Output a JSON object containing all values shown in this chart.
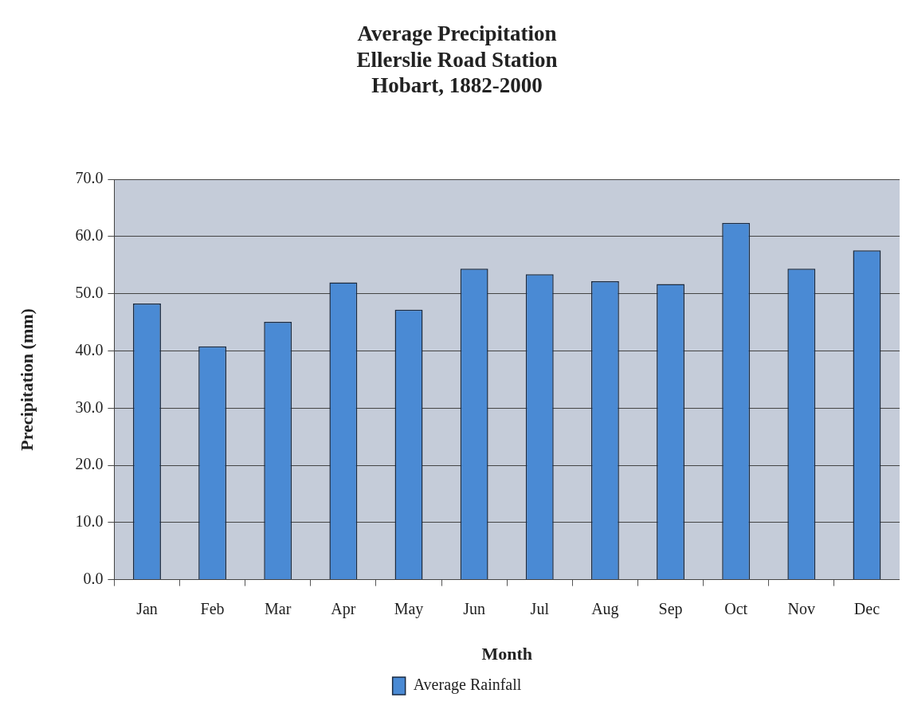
{
  "chart_data": {
    "type": "bar",
    "title": "Average Precipitation\nEllerslie Road Station\nHobart, 1882-2000",
    "xlabel": "Month",
    "ylabel": "Precipitation (mm)",
    "categories": [
      "Jan",
      "Feb",
      "Mar",
      "Apr",
      "May",
      "Jun",
      "Jul",
      "Aug",
      "Sep",
      "Oct",
      "Nov",
      "Dec"
    ],
    "series": [
      {
        "name": "Average Rainfall",
        "color": "#4a8ad4",
        "values": [
          48.3,
          40.8,
          45.1,
          52.0,
          47.2,
          54.4,
          53.4,
          52.2,
          51.7,
          62.4,
          54.4,
          57.6
        ]
      }
    ],
    "ylim": [
      0,
      70
    ],
    "yticks": [
      {
        "value": 0,
        "label": "0.0"
      },
      {
        "value": 10,
        "label": "10.0"
      },
      {
        "value": 20,
        "label": "20.0"
      },
      {
        "value": 30,
        "label": "30.0"
      },
      {
        "value": 40,
        "label": "40.0"
      },
      {
        "value": 50,
        "label": "50.0"
      },
      {
        "value": 60,
        "label": "60.0"
      },
      {
        "value": 70,
        "label": "70.0"
      }
    ],
    "grid": "y",
    "legend": "bottom"
  }
}
